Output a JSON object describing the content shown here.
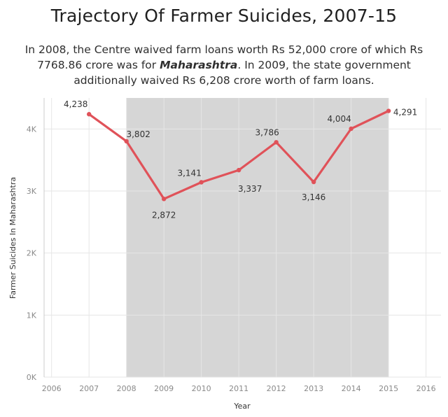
{
  "header": {
    "title": "Trajectory Of Farmer Suicides, 2007-15",
    "subtitle_part1": "In 2008, the Centre waived farm loans worth Rs 52,000 crore of which Rs 7768.86 crore was for ",
    "subtitle_emphasis": "Maharashtra",
    "subtitle_part2": ". In 2009, the state government additionally waived Rs 6,208 crore worth of farm loans."
  },
  "colors": {
    "line": "#e05259",
    "shade": "#d6d6d6",
    "grid": "#e6e6e6",
    "axis": "#cccccc"
  },
  "chart_data": {
    "type": "line",
    "title": "Trajectory Of Farmer Suicides, 2007-15",
    "xlabel": "Year",
    "ylabel": "Farmer Suicides In Maharashtra",
    "x": [
      2007,
      2008,
      2009,
      2010,
      2011,
      2012,
      2013,
      2014,
      2015
    ],
    "values": [
      4238,
      3802,
      2872,
      3141,
      3337,
      3786,
      3146,
      4004,
      4291
    ],
    "labels": [
      "4,238",
      "3,802",
      "2,872",
      "3,141",
      "3,337",
      "3,786",
      "3,146",
      "4,004",
      "4,291"
    ],
    "xlim": [
      2005.8,
      2016.4
    ],
    "ylim": [
      0,
      4500
    ],
    "x_ticks": [
      2006,
      2007,
      2008,
      2009,
      2010,
      2011,
      2012,
      2013,
      2014,
      2015,
      2016
    ],
    "y_ticks": [
      {
        "value": 0,
        "label": "0K"
      },
      {
        "value": 1000,
        "label": "1K"
      },
      {
        "value": 2000,
        "label": "2K"
      },
      {
        "value": 3000,
        "label": "3K"
      },
      {
        "value": 4000,
        "label": "4K"
      }
    ],
    "shaded_range": [
      2008,
      2015
    ],
    "grid": true
  }
}
